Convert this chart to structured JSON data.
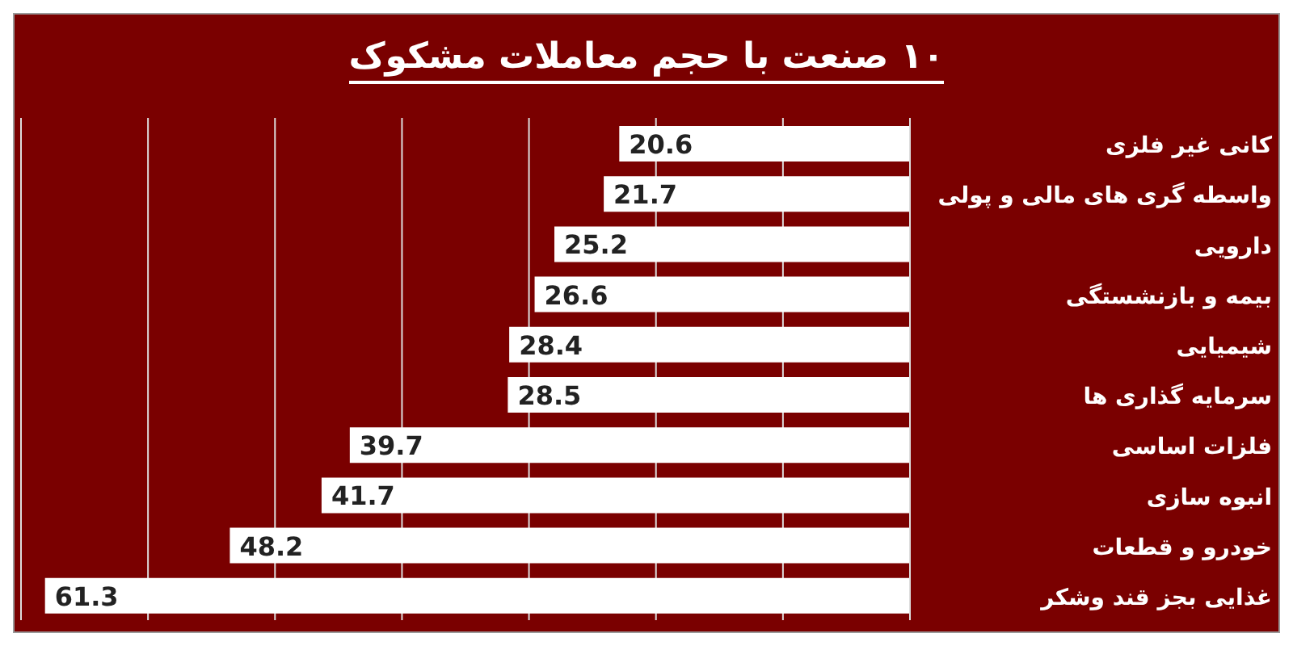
{
  "chart_data": {
    "type": "bar",
    "orientation": "horizontal",
    "title": "۱۰ صنعت با حجم معاملات مشکوک",
    "categories": [
      "کانی غیر فلزی",
      "واسطه گری های مالی و پولی",
      "دارویی",
      "بیمه و بازنشستگی",
      "شیمیایی",
      "سرمایه گذاری ها",
      "فلزات اساسی",
      "انبوه سازی",
      "خودرو و قطعات",
      "غذایی بجز قند وشکر"
    ],
    "values": [
      20.6,
      21.7,
      25.2,
      26.6,
      28.4,
      28.5,
      39.7,
      41.7,
      48.2,
      61.3
    ],
    "color": "#ffffff",
    "grid": "x",
    "tick_labels": false,
    "data_labels": true
  }
}
